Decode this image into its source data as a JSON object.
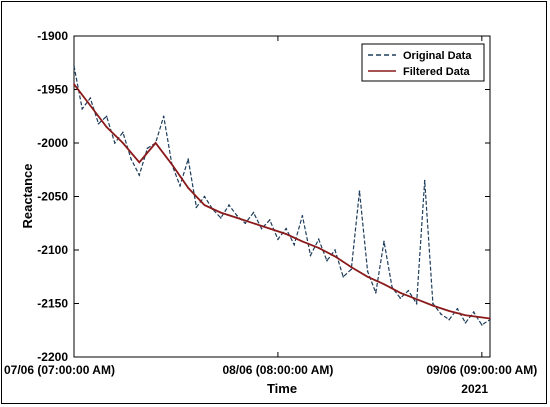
{
  "chart_data": {
    "type": "line",
    "title": "",
    "xlabel": "Time",
    "ylabel": "Reactance",
    "year_label": "2021",
    "ylim": [
      -2200,
      -1900
    ],
    "yticks": [
      -1900,
      -1950,
      -2000,
      -2050,
      -2100,
      -2150,
      -2200
    ],
    "xlim": [
      "2021-06-07 07:00",
      "2021-06-09 10:00"
    ],
    "xticks": [
      {
        "x": "2021-06-07 07:00",
        "label": "07/06 (07:00:00 AM)"
      },
      {
        "x": "2021-06-08 08:00",
        "label": "08/06 (08:00:00 AM)"
      },
      {
        "x": "2021-06-09 09:00",
        "label": "09/06 (09:00:00 AM)"
      }
    ],
    "legend": {
      "position": "top-right",
      "entries": [
        "Original Data",
        "Filtered Data"
      ]
    },
    "grid": false,
    "series": [
      {
        "name": "Original Data",
        "color": "#1f3e5c",
        "style": "dashed",
        "x": [
          "2021-06-07 07:00",
          "2021-06-07 08:00",
          "2021-06-07 09:00",
          "2021-06-07 10:00",
          "2021-06-07 11:00",
          "2021-06-07 12:00",
          "2021-06-07 13:00",
          "2021-06-07 14:00",
          "2021-06-07 15:00",
          "2021-06-07 16:00",
          "2021-06-07 17:00",
          "2021-06-07 18:00",
          "2021-06-07 19:00",
          "2021-06-07 20:00",
          "2021-06-07 21:00",
          "2021-06-07 22:00",
          "2021-06-07 23:00",
          "2021-06-08 00:00",
          "2021-06-08 01:00",
          "2021-06-08 02:00",
          "2021-06-08 03:00",
          "2021-06-08 04:00",
          "2021-06-08 05:00",
          "2021-06-08 06:00",
          "2021-06-08 07:00",
          "2021-06-08 08:00",
          "2021-06-08 09:00",
          "2021-06-08 10:00",
          "2021-06-08 11:00",
          "2021-06-08 12:00",
          "2021-06-08 13:00",
          "2021-06-08 14:00",
          "2021-06-08 15:00",
          "2021-06-08 16:00",
          "2021-06-08 17:00",
          "2021-06-08 18:00",
          "2021-06-08 19:00",
          "2021-06-08 20:00",
          "2021-06-08 21:00",
          "2021-06-08 22:00",
          "2021-06-08 23:00",
          "2021-06-09 00:00",
          "2021-06-09 01:00",
          "2021-06-09 02:00",
          "2021-06-09 03:00",
          "2021-06-09 04:00",
          "2021-06-09 05:00",
          "2021-06-09 06:00",
          "2021-06-09 07:00",
          "2021-06-09 08:00",
          "2021-06-09 09:00",
          "2021-06-09 10:00"
        ],
        "y": [
          -1928,
          -1968,
          -1958,
          -1982,
          -1975,
          -2000,
          -1990,
          -2015,
          -2030,
          -2005,
          -2000,
          -1975,
          -2020,
          -2040,
          -2015,
          -2060,
          -2050,
          -2062,
          -2070,
          -2058,
          -2068,
          -2075,
          -2065,
          -2080,
          -2072,
          -2090,
          -2080,
          -2095,
          -2068,
          -2105,
          -2090,
          -2110,
          -2100,
          -2125,
          -2118,
          -2045,
          -2120,
          -2140,
          -2092,
          -2135,
          -2145,
          -2138,
          -2150,
          -2035,
          -2150,
          -2160,
          -2165,
          -2155,
          -2168,
          -2158,
          -2170,
          -2165
        ]
      },
      {
        "name": "Filtered Data",
        "color": "#8b1a1a",
        "style": "solid",
        "x": [
          "2021-06-07 07:00",
          "2021-06-07 09:00",
          "2021-06-07 11:00",
          "2021-06-07 13:00",
          "2021-06-07 15:00",
          "2021-06-07 17:00",
          "2021-06-07 19:00",
          "2021-06-07 21:00",
          "2021-06-07 23:00",
          "2021-06-08 01:00",
          "2021-06-08 03:00",
          "2021-06-08 05:00",
          "2021-06-08 07:00",
          "2021-06-08 09:00",
          "2021-06-08 11:00",
          "2021-06-08 13:00",
          "2021-06-08 15:00",
          "2021-06-08 17:00",
          "2021-06-08 19:00",
          "2021-06-08 21:00",
          "2021-06-08 23:00",
          "2021-06-09 01:00",
          "2021-06-09 03:00",
          "2021-06-09 05:00",
          "2021-06-09 07:00",
          "2021-06-09 09:00",
          "2021-06-09 10:00"
        ],
        "y": [
          -1945,
          -1965,
          -1985,
          -2000,
          -2018,
          -2000,
          -2020,
          -2042,
          -2058,
          -2065,
          -2070,
          -2075,
          -2080,
          -2085,
          -2092,
          -2098,
          -2106,
          -2116,
          -2125,
          -2132,
          -2140,
          -2146,
          -2152,
          -2157,
          -2161,
          -2163,
          -2164
        ]
      }
    ]
  }
}
